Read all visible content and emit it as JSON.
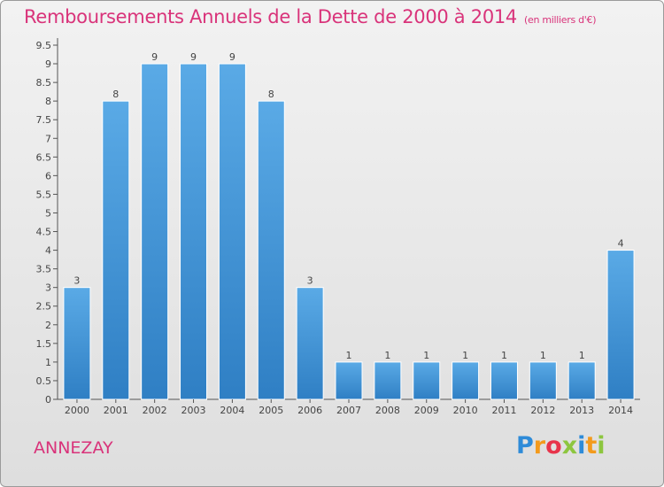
{
  "header": {
    "title": "Remboursements Annuels de la Dette de 2000 à 2014",
    "subtitle": "(en milliers d'€)"
  },
  "footer": {
    "commune": "ANNEZAY",
    "logo_text": "Proxiti"
  },
  "colors": {
    "accent": "#d9337a",
    "bar_top": "#5aaae6",
    "bar_bottom": "#2f7fc4"
  },
  "chart_data": {
    "type": "bar",
    "title": "Remboursements Annuels de la Dette de 2000 à 2014",
    "subtitle": "(en milliers d'€)",
    "categories": [
      "2000",
      "2001",
      "2002",
      "2003",
      "2004",
      "2005",
      "2006",
      "2007",
      "2008",
      "2009",
      "2010",
      "2011",
      "2012",
      "2013",
      "2014"
    ],
    "values": [
      3,
      8,
      9,
      9,
      9,
      8,
      3,
      1,
      1,
      1,
      1,
      1,
      1,
      1,
      4
    ],
    "data_labels": [
      "3",
      "8",
      "9",
      "9",
      "9",
      "8",
      "3",
      "1",
      "1",
      "1",
      "1",
      "1",
      "1",
      "1",
      "4"
    ],
    "yticks": [
      "0",
      "0.5",
      "1",
      "1.5",
      "2",
      "2.5",
      "3",
      "3.5",
      "4",
      "4.5",
      "5",
      "5.5",
      "6",
      "6.5",
      "7",
      "7.5",
      "8",
      "8.5",
      "9",
      "9.5"
    ],
    "ylim": [
      0,
      9.5
    ],
    "grid": false,
    "legend": "none"
  }
}
